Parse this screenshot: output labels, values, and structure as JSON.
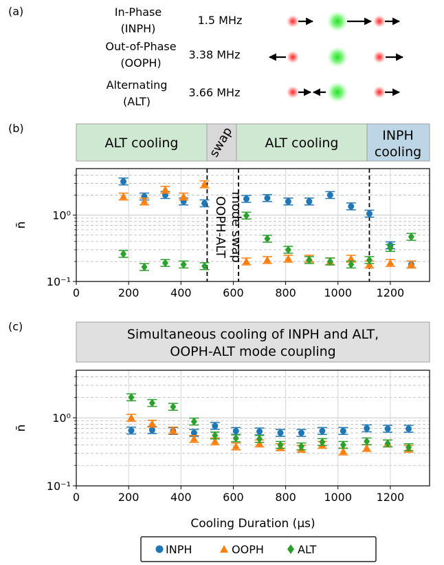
{
  "panel_labels": {
    "a": "(a)",
    "b": "(b)",
    "c": "(c)"
  },
  "modes": [
    {
      "line1": "In-Phase",
      "line2": "(INPH)",
      "freq": "1.5 MHz"
    },
    {
      "line1": "Out-of-Phase",
      "line2": "(OOPH)",
      "freq": "3.38 MHz"
    },
    {
      "line1": "Alternating",
      "line2": "(ALT)",
      "freq": "3.66 MHz"
    }
  ],
  "colors": {
    "INPH": "#1f77b4",
    "OOPH": "#ff7f0e",
    "ALT": "#2ca02c",
    "ion_red": "#ff3b3b",
    "ion_green": "#33dd33",
    "alt_box": "#cfe8d1",
    "swap_box": "#d9d9d9",
    "inph_box": "#bcd6e6",
    "sim_box": "#e0e0e0"
  },
  "panel_b_boxes": [
    {
      "label": "ALT cooling",
      "color": "alt"
    },
    {
      "label": "swap",
      "color": "swap"
    },
    {
      "label": "ALT cooling",
      "color": "alt"
    },
    {
      "label_line1": "INPH",
      "label_line2": "cooling",
      "color": "inph"
    }
  ],
  "panel_b_annotation": {
    "line1": "OOPH-ALT",
    "line2": "mode swap"
  },
  "panel_c_box": {
    "line1": "Simultaneous cooling of INPH and ALT,",
    "line2": "OOPH-ALT mode coupling"
  },
  "xlabel": "Cooling Duration (μs)",
  "ylabel": "n̄",
  "legend": [
    {
      "label": "INPH",
      "marker": "circle"
    },
    {
      "label": "OOPH",
      "marker": "triangle"
    },
    {
      "label": "ALT",
      "marker": "diamond"
    }
  ],
  "chart_data": [
    {
      "type": "scatter",
      "panel": "b",
      "xlim": [
        0,
        1350
      ],
      "ylim": [
        0.1,
        5
      ],
      "yscale": "log",
      "xticks": [
        0,
        200,
        400,
        600,
        800,
        1000,
        1200
      ],
      "yticks": [
        {
          "value": 0.1,
          "label": "10⁻¹"
        },
        {
          "value": 1,
          "label": "10⁰"
        }
      ],
      "grid": true,
      "vlines": [
        500,
        620,
        1120
      ],
      "series": [
        {
          "name": "INPH",
          "x": [
            180,
            260,
            340,
            410,
            490,
            650,
            730,
            810,
            890,
            970,
            1050,
            1120,
            1200,
            1280
          ],
          "y": [
            3.2,
            1.9,
            2.0,
            1.6,
            1.5,
            1.75,
            1.8,
            1.6,
            1.6,
            2.0,
            1.35,
            1.05,
            0.35,
            0.18
          ]
        },
        {
          "name": "OOPH",
          "x": [
            180,
            260,
            340,
            410,
            490,
            650,
            730,
            810,
            890,
            970,
            1050,
            1120,
            1200,
            1280
          ],
          "y": [
            1.9,
            1.6,
            2.4,
            1.9,
            2.9,
            0.2,
            0.21,
            0.22,
            0.22,
            0.2,
            0.22,
            0.18,
            0.19,
            0.18
          ]
        },
        {
          "name": "ALT",
          "x": [
            180,
            260,
            340,
            410,
            490,
            650,
            730,
            810,
            890,
            970,
            1050,
            1120,
            1200,
            1280
          ],
          "y": [
            0.26,
            0.165,
            0.19,
            0.18,
            0.17,
            0.98,
            0.44,
            0.3,
            0.21,
            0.2,
            0.18,
            0.21,
            0.32,
            0.47
          ]
        }
      ]
    },
    {
      "type": "scatter",
      "panel": "c",
      "xlim": [
        0,
        1350
      ],
      "ylim": [
        0.1,
        5
      ],
      "yscale": "log",
      "xticks": [
        0,
        200,
        400,
        600,
        800,
        1000,
        1200
      ],
      "yticks": [
        {
          "value": 0.1,
          "label": "10⁻¹"
        },
        {
          "value": 1,
          "label": "10⁰"
        }
      ],
      "grid": true,
      "series": [
        {
          "name": "INPH",
          "x": [
            210,
            290,
            370,
            450,
            530,
            610,
            700,
            780,
            860,
            940,
            1020,
            1110,
            1190,
            1270
          ],
          "y": [
            0.65,
            0.66,
            0.64,
            0.6,
            0.76,
            0.64,
            0.63,
            0.6,
            0.6,
            0.64,
            0.64,
            0.7,
            0.69,
            0.69
          ]
        },
        {
          "name": "OOPH",
          "x": [
            210,
            290,
            370,
            450,
            530,
            610,
            700,
            780,
            860,
            940,
            1020,
            1110,
            1190,
            1270
          ],
          "y": [
            1.0,
            0.82,
            0.65,
            0.49,
            0.45,
            0.38,
            0.42,
            0.37,
            0.35,
            0.4,
            0.32,
            0.36,
            0.42,
            0.35
          ]
        },
        {
          "name": "ALT",
          "x": [
            210,
            290,
            370,
            450,
            530,
            610,
            700,
            780,
            860,
            940,
            1020,
            1110,
            1190,
            1270
          ],
          "y": [
            2.0,
            1.65,
            1.45,
            0.88,
            0.55,
            0.5,
            0.49,
            0.4,
            0.38,
            0.44,
            0.4,
            0.45,
            0.42,
            0.37
          ]
        }
      ]
    }
  ]
}
